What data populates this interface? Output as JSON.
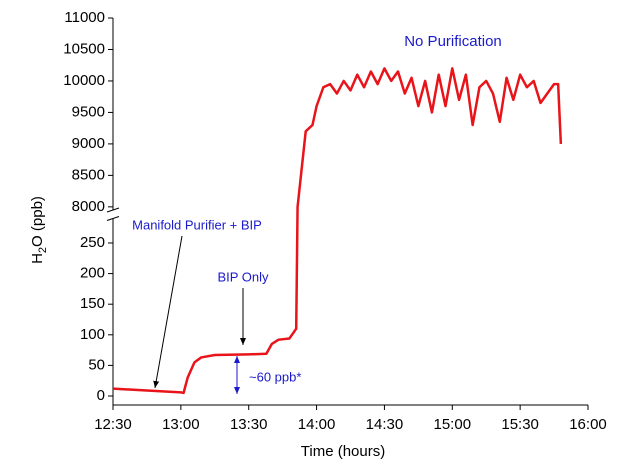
{
  "chart_data": {
    "type": "line",
    "xlabel": "Time (hours)",
    "ylabel": [
      "H",
      "2",
      "O (ppb)"
    ],
    "xlim": [
      12.5,
      16
    ],
    "xticks": [
      {
        "value": 12.5,
        "label": "12:30"
      },
      {
        "value": 13,
        "label": "13:00"
      },
      {
        "value": 13.5,
        "label": "13:30"
      },
      {
        "value": 14,
        "label": "14:00"
      },
      {
        "value": 14.5,
        "label": "14:30"
      },
      {
        "value": 15,
        "label": "15:00"
      },
      {
        "value": 15.5,
        "label": "15:30"
      },
      {
        "value": 16,
        "label": "16:00"
      }
    ],
    "ylim": [
      0,
      11000
    ],
    "ybreak": [
      290,
      7950
    ],
    "yticks": [
      0,
      50,
      100,
      150,
      200,
      250,
      8000,
      8500,
      9000,
      9500,
      10000,
      10500,
      11000
    ],
    "annotations": [
      "No Purification",
      "Manifold Purifier + BIP",
      "BIP Only",
      "~60 ppb*"
    ],
    "series": [
      {
        "color": "#e8141a",
        "x": [
          12.5,
          12.75,
          13.0,
          13.02,
          13.05,
          13.1,
          13.15,
          13.25,
          13.5,
          13.63,
          13.67,
          13.72,
          13.8,
          13.85,
          13.86,
          13.9,
          13.92,
          13.97,
          14.0,
          14.05,
          14.1,
          14.15,
          14.2,
          14.25,
          14.3,
          14.35,
          14.4,
          14.45,
          14.5,
          14.55,
          14.6,
          14.65,
          14.7,
          14.75,
          14.8,
          14.85,
          14.9,
          14.95,
          15.0,
          15.05,
          15.1,
          15.15,
          15.2,
          15.25,
          15.3,
          15.35,
          15.4,
          15.45,
          15.5,
          15.55,
          15.6,
          15.65,
          15.7,
          15.75,
          15.78,
          15.8
        ],
        "values": [
          12,
          9,
          6,
          5,
          30,
          55,
          63,
          67,
          68,
          69,
          85,
          92,
          94,
          110,
          8000,
          8800,
          9200,
          9300,
          9600,
          9900,
          9950,
          9800,
          10000,
          9850,
          10100,
          9900,
          10150,
          9950,
          10200,
          10000,
          10150,
          9800,
          10050,
          9600,
          10000,
          9500,
          10100,
          9600,
          10200,
          9700,
          10100,
          9300,
          9900,
          10000,
          9800,
          9350,
          10050,
          9700,
          10100,
          9900,
          10000,
          9650,
          9800,
          9950,
          9950,
          9000
        ]
      }
    ]
  }
}
